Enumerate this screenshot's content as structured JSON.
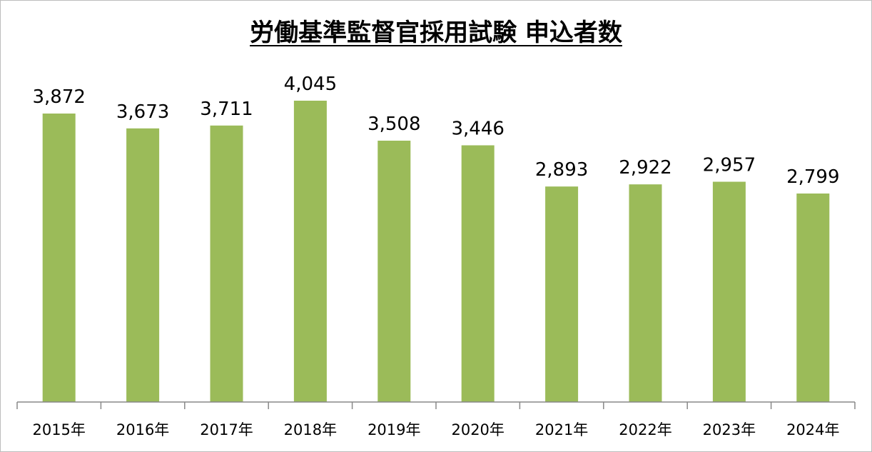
{
  "chart_data": {
    "type": "bar",
    "title": "労働基準監督官採用試験 申込者数",
    "categories": [
      "2015年",
      "2016年",
      "2017年",
      "2018年",
      "2019年",
      "2020年",
      "2021年",
      "2022年",
      "2023年",
      "2024年"
    ],
    "values": [
      3872,
      3673,
      3711,
      4045,
      3508,
      3446,
      2893,
      2922,
      2957,
      2799
    ],
    "data_labels": [
      "3,872",
      "3,673",
      "3,711",
      "4,045",
      "3,508",
      "3,446",
      "2,893",
      "2,922",
      "2,957",
      "2,799"
    ],
    "xlabel": "",
    "ylabel": "",
    "ylim": [
      0,
      4200
    ],
    "grid": false,
    "legend": "none",
    "bar_color": "#9BBB59",
    "axis_color": "#888888"
  }
}
